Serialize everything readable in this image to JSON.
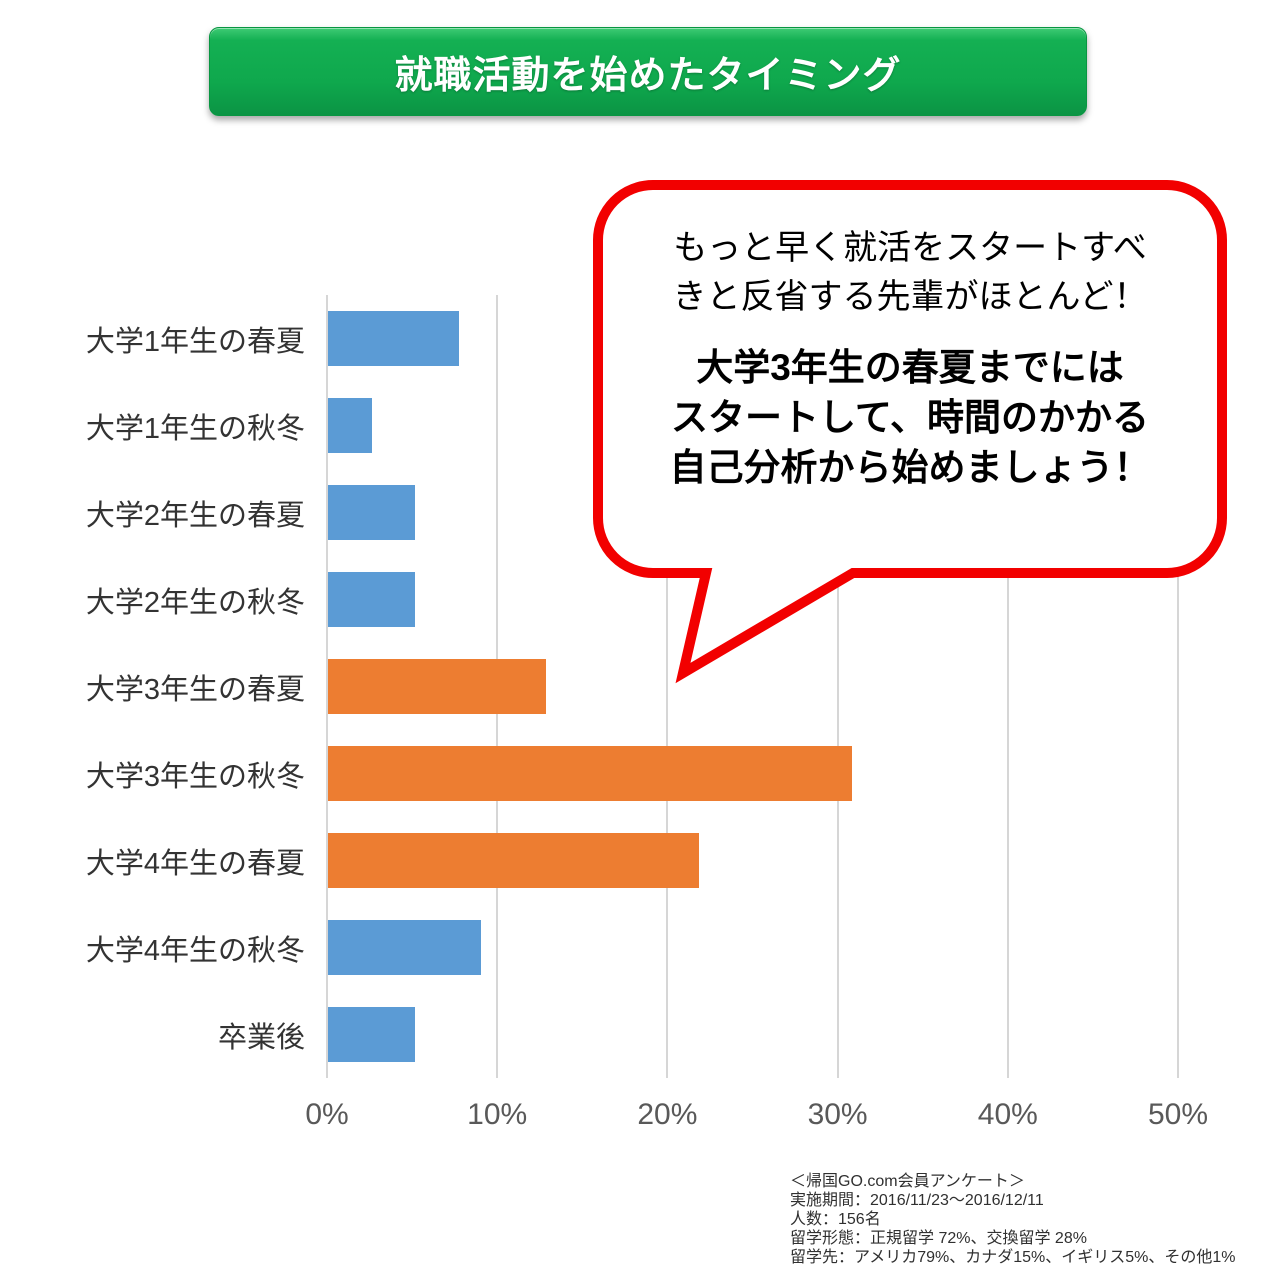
{
  "title": "就職活動を始めたタイミング",
  "chart_data": {
    "type": "bar",
    "orientation": "horizontal",
    "title": "就職活動を始めたタイミング",
    "categories": [
      "大学1年生の春夏",
      "大学1年生の秋冬",
      "大学2年生の春夏",
      "大学2年生の秋冬",
      "大学3年生の春夏",
      "大学3年生の秋冬",
      "大学4年生の春夏",
      "大学4年生の秋冬",
      "卒業後"
    ],
    "values": [
      7.7,
      2.6,
      5.1,
      5.1,
      12.8,
      30.8,
      21.8,
      9.0,
      5.1
    ],
    "unit": "%",
    "xlim": [
      0,
      50
    ],
    "x_ticks": [
      "0%",
      "10%",
      "20%",
      "30%",
      "40%",
      "50%"
    ],
    "grid": true,
    "legend": "none",
    "bar_colors": [
      "#5B9BD5",
      "#5B9BD5",
      "#5B9BD5",
      "#5B9BD5",
      "#ED7D31",
      "#ED7D31",
      "#ED7D31",
      "#5B9BD5",
      "#5B9BD5"
    ],
    "colors": {
      "default_bar": "#5B9BD5",
      "highlight_bar": "#ED7D31",
      "gridline": "#D6D6D6",
      "tick_label": "#595959"
    }
  },
  "banner": {
    "fill_color": "#0FA84D",
    "text_color": "#FFFFFF"
  },
  "callout": {
    "intro_lines": [
      "もっと早く就活をスタートすべ",
      "きと反省する先輩がほとんど！"
    ],
    "emphasis_lines": [
      "大学3年生の春夏までには",
      "スタートして、時間のかかる",
      "自己分析から始めましょう！"
    ],
    "border_color": "#F20000",
    "fill_color": "#FFFFFF"
  },
  "footnote": {
    "lines": [
      "＜帰国GO.com会員アンケート＞",
      "実施期間：2016/11/23～2016/12/11",
      "人数：156名",
      "留学形態：正規留学 72%、交換留学 28%",
      "留学先：アメリカ79%、カナダ15%、イギリス5%、その他1%"
    ]
  }
}
